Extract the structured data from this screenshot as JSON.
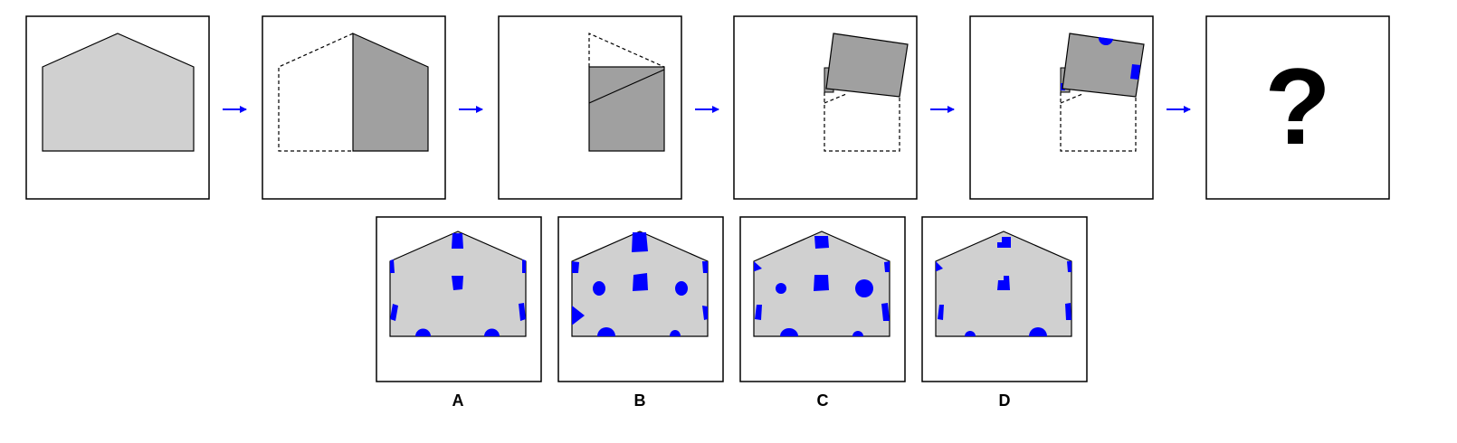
{
  "question_mark": "?",
  "options": {
    "a_label": "A",
    "b_label": "B",
    "c_label": "C",
    "d_label": "D"
  },
  "colors": {
    "paper_light": "#d0d0d0",
    "paper_folded": "#a0a0a0",
    "hole": "#0000ff",
    "arrow": "#0000ff",
    "frame": "#000000",
    "background": "#ffffff"
  }
}
